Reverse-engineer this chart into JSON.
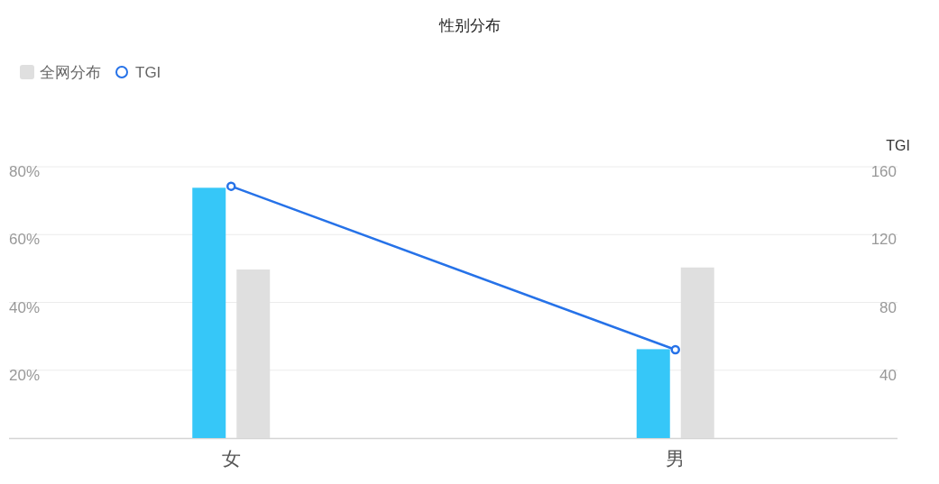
{
  "chart_data": {
    "type": "bar",
    "title": "性别分布",
    "categories": [
      "女",
      "男"
    ],
    "series": [
      {
        "color": "#36c7f8",
        "values": [
          73.8,
          26.2
        ]
      },
      {
        "name": "全网分布",
        "color": "#dfdfdf",
        "values": [
          49.7,
          50.3
        ]
      },
      {
        "name": "TGI",
        "type": "line",
        "axis": "y2",
        "color": "#2672e8",
        "values": [
          148.5,
          52.1
        ]
      }
    ],
    "ylim": [
      0,
      80
    ],
    "yticks": [
      {
        "value": 20,
        "label": "20%"
      },
      {
        "value": 40,
        "label": "40%"
      },
      {
        "value": 60,
        "label": "60%"
      },
      {
        "value": 80,
        "label": "80%"
      }
    ],
    "y2lim": [
      0,
      160
    ],
    "y2ticks": [
      40,
      80,
      120,
      160
    ],
    "y2label": "TGI",
    "grid": "y",
    "legend": "top left",
    "marker": "circle"
  }
}
